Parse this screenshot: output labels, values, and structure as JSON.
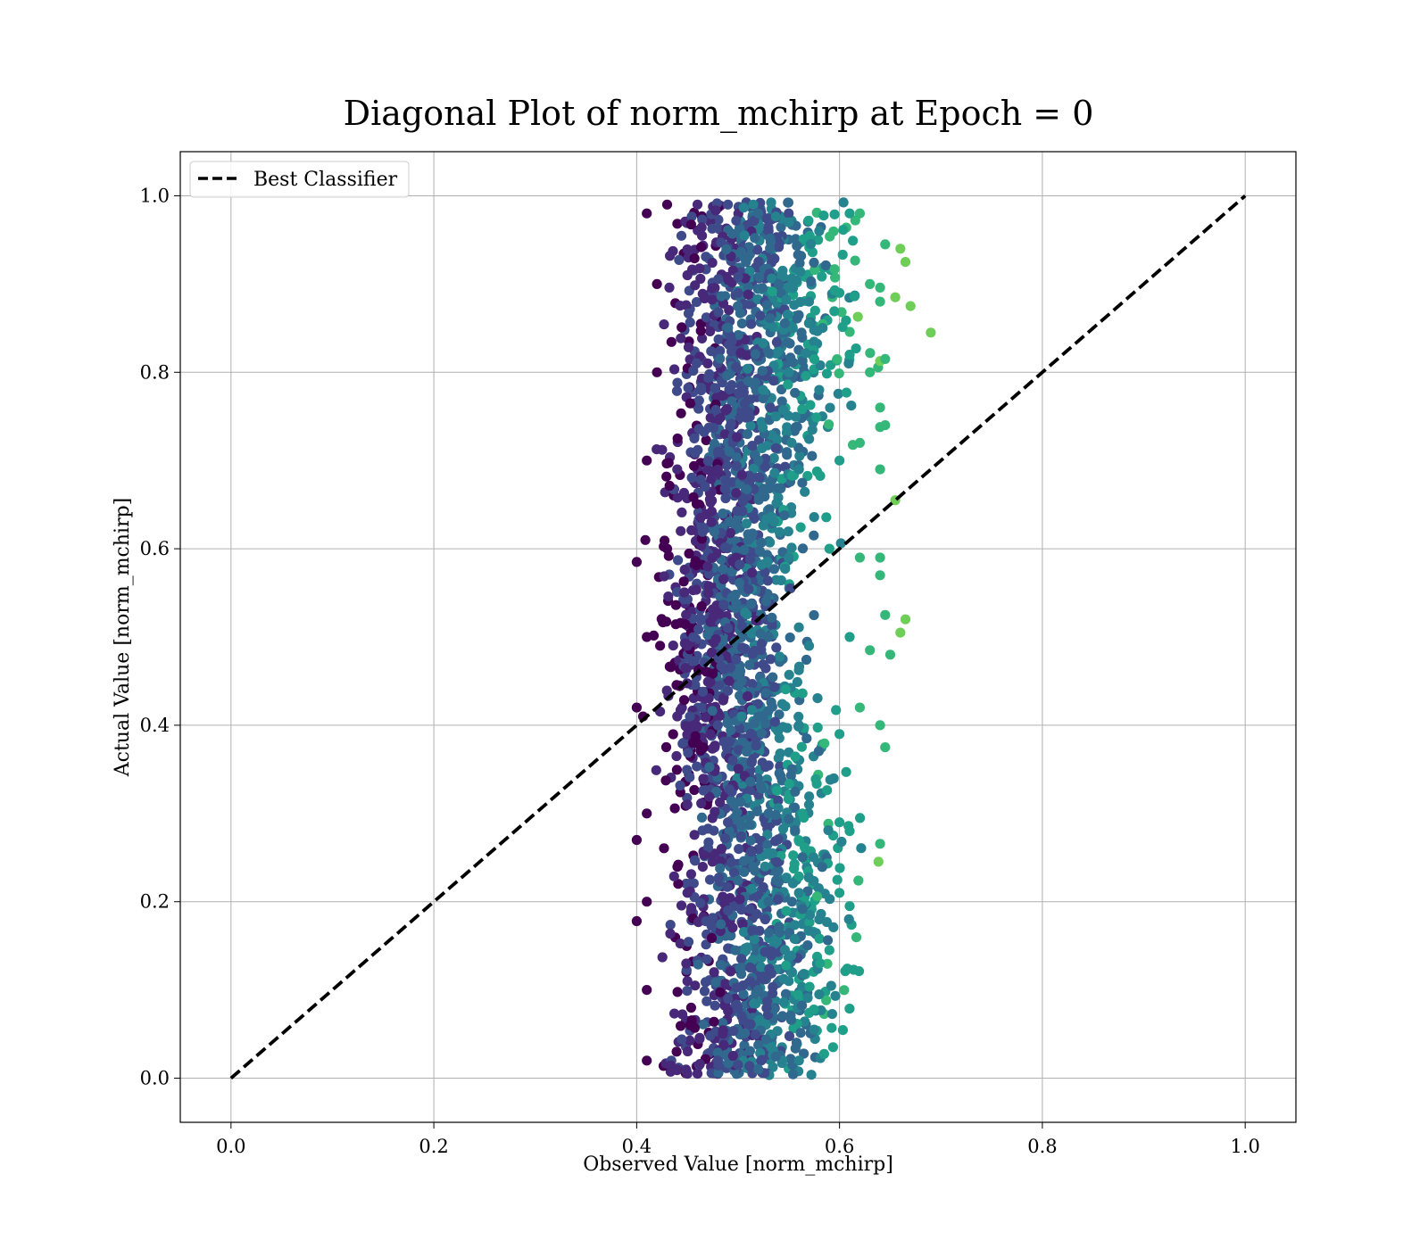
{
  "chart_data": {
    "type": "scatter",
    "title": "Diagonal Plot of norm_mchirp at Epoch = 0",
    "xlabel": "Observed Value [norm_mchirp]",
    "ylabel": "Actual Value [norm_mchirp]",
    "xlim": [
      -0.05,
      1.05
    ],
    "ylim": [
      -0.05,
      1.05
    ],
    "xticks": [
      "0.0",
      "0.2",
      "0.4",
      "0.6",
      "0.8",
      "1.0"
    ],
    "yticks": [
      "0.0",
      "0.2",
      "0.4",
      "0.6",
      "0.8",
      "1.0"
    ],
    "grid": true,
    "legend": {
      "position": "top-left",
      "entries": [
        "Best Classifier"
      ]
    },
    "diagonal": {
      "name": "Best Classifier",
      "x": [
        0.0,
        1.0
      ],
      "y": [
        0.0,
        1.0
      ],
      "style": "dashed",
      "color": "#000000"
    },
    "scatter_summary": {
      "colormap": "viridis",
      "colors": [
        "#440154",
        "#482878",
        "#3e4a89",
        "#31688e",
        "#26828e",
        "#1f9e89",
        "#35b779",
        "#6ece58"
      ],
      "observed_range": [
        0.4,
        0.69
      ],
      "actual_range": [
        0.0,
        1.0
      ]
    },
    "scatter_points": [
      [
        0.41,
        0.98
      ],
      [
        0.43,
        0.99
      ],
      [
        0.46,
        0.99
      ],
      [
        0.49,
        0.99
      ],
      [
        0.52,
        0.98
      ],
      [
        0.55,
        0.97
      ],
      [
        0.58,
        0.96
      ],
      [
        0.61,
        0.98
      ],
      [
        0.62,
        0.98
      ],
      [
        0.645,
        0.945
      ],
      [
        0.66,
        0.94
      ],
      [
        0.665,
        0.925
      ],
      [
        0.42,
        0.9
      ],
      [
        0.45,
        0.91
      ],
      [
        0.5,
        0.89
      ],
      [
        0.54,
        0.9
      ],
      [
        0.57,
        0.88
      ],
      [
        0.6,
        0.89
      ],
      [
        0.63,
        0.9
      ],
      [
        0.64,
        0.88
      ],
      [
        0.655,
        0.885
      ],
      [
        0.67,
        0.875
      ],
      [
        0.69,
        0.845
      ],
      [
        0.42,
        0.8
      ],
      [
        0.47,
        0.81
      ],
      [
        0.51,
        0.79
      ],
      [
        0.55,
        0.8
      ],
      [
        0.58,
        0.78
      ],
      [
        0.61,
        0.82
      ],
      [
        0.63,
        0.8
      ],
      [
        0.645,
        0.815
      ],
      [
        0.64,
        0.76
      ],
      [
        0.645,
        0.74
      ],
      [
        0.41,
        0.7
      ],
      [
        0.44,
        0.69
      ],
      [
        0.48,
        0.71
      ],
      [
        0.52,
        0.7
      ],
      [
        0.56,
        0.69
      ],
      [
        0.6,
        0.7
      ],
      [
        0.62,
        0.72
      ],
      [
        0.64,
        0.69
      ],
      [
        0.655,
        0.655
      ],
      [
        0.4,
        0.585
      ],
      [
        0.43,
        0.6
      ],
      [
        0.47,
        0.58
      ],
      [
        0.51,
        0.61
      ],
      [
        0.55,
        0.59
      ],
      [
        0.59,
        0.6
      ],
      [
        0.62,
        0.59
      ],
      [
        0.64,
        0.59
      ],
      [
        0.64,
        0.57
      ],
      [
        0.645,
        0.525
      ],
      [
        0.665,
        0.52
      ],
      [
        0.66,
        0.505
      ],
      [
        0.65,
        0.48
      ],
      [
        0.41,
        0.5
      ],
      [
        0.45,
        0.49
      ],
      [
        0.49,
        0.51
      ],
      [
        0.53,
        0.5
      ],
      [
        0.57,
        0.49
      ],
      [
        0.61,
        0.5
      ],
      [
        0.63,
        0.485
      ],
      [
        0.4,
        0.42
      ],
      [
        0.44,
        0.41
      ],
      [
        0.48,
        0.4
      ],
      [
        0.52,
        0.41
      ],
      [
        0.56,
        0.4
      ],
      [
        0.6,
        0.39
      ],
      [
        0.62,
        0.42
      ],
      [
        0.64,
        0.4
      ],
      [
        0.645,
        0.375
      ],
      [
        0.41,
        0.3
      ],
      [
        0.45,
        0.31
      ],
      [
        0.49,
        0.29
      ],
      [
        0.53,
        0.3
      ],
      [
        0.57,
        0.31
      ],
      [
        0.6,
        0.29
      ],
      [
        0.61,
        0.28
      ],
      [
        0.4,
        0.27
      ],
      [
        0.41,
        0.2
      ],
      [
        0.45,
        0.21
      ],
      [
        0.49,
        0.19
      ],
      [
        0.53,
        0.2
      ],
      [
        0.56,
        0.21
      ],
      [
        0.58,
        0.18
      ],
      [
        0.61,
        0.195
      ],
      [
        0.6,
        0.21
      ],
      [
        0.4,
        0.178
      ],
      [
        0.41,
        0.1
      ],
      [
        0.45,
        0.11
      ],
      [
        0.49,
        0.09
      ],
      [
        0.52,
        0.1
      ],
      [
        0.55,
        0.11
      ],
      [
        0.58,
        0.095
      ],
      [
        0.59,
        0.145
      ],
      [
        0.575,
        0.055
      ],
      [
        0.56,
        0.02
      ],
      [
        0.41,
        0.02
      ],
      [
        0.44,
        0.01
      ],
      [
        0.45,
        0.005
      ],
      [
        0.46,
        0.005
      ],
      [
        0.48,
        0.02
      ],
      [
        0.5,
        0.015
      ],
      [
        0.52,
        0.01
      ]
    ]
  }
}
